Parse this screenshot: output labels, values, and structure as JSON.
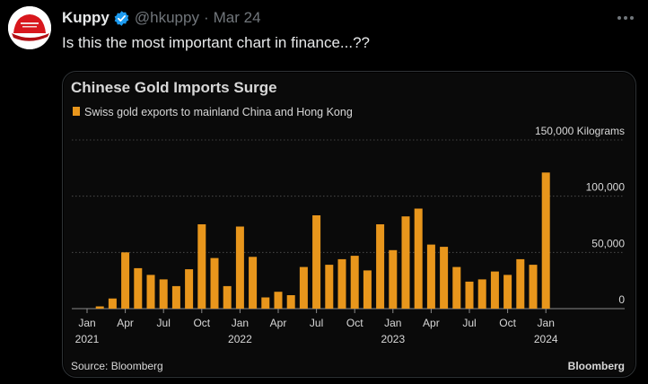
{
  "tweet": {
    "author_name": "Kuppy",
    "handle": "@hkuppy",
    "separator": "·",
    "date": "Mar 24",
    "text": "Is this the most important chart in finance...??"
  },
  "colors": {
    "bar": "#e8961c",
    "background": "#000000",
    "verified": "#1d9bf0",
    "avatar_red": "#d8171d"
  },
  "icons": {
    "verified": "verified-badge-icon",
    "more": "more-options-icon",
    "avatar": "red-cap-avatar"
  },
  "chart_data": {
    "type": "bar",
    "title": "Chinese Gold Imports Surge",
    "legend": "Swiss gold exports to mainland China and Hong Kong",
    "unit_label": "150,000 Kilograms",
    "ylim": [
      0,
      150000
    ],
    "y_ticks": [
      {
        "value": 150000,
        "label": "150,000 Kilograms"
      },
      {
        "value": 100000,
        "label": "100,000"
      },
      {
        "value": 50000,
        "label": "50,000"
      },
      {
        "value": 0,
        "label": "0"
      }
    ],
    "x_tick_labels": [
      {
        "index": 0,
        "month": "Jan",
        "year": "2021"
      },
      {
        "index": 3,
        "month": "Apr",
        "year": ""
      },
      {
        "index": 6,
        "month": "Jul",
        "year": ""
      },
      {
        "index": 9,
        "month": "Oct",
        "year": ""
      },
      {
        "index": 12,
        "month": "Jan",
        "year": "2022"
      },
      {
        "index": 15,
        "month": "Apr",
        "year": ""
      },
      {
        "index": 18,
        "month": "Jul",
        "year": ""
      },
      {
        "index": 21,
        "month": "Oct",
        "year": ""
      },
      {
        "index": 24,
        "month": "Jan",
        "year": "2023"
      },
      {
        "index": 27,
        "month": "Apr",
        "year": ""
      },
      {
        "index": 30,
        "month": "Jul",
        "year": ""
      },
      {
        "index": 33,
        "month": "Oct",
        "year": ""
      },
      {
        "index": 36,
        "month": "Jan",
        "year": "2024"
      }
    ],
    "values": [
      0,
      2000,
      9000,
      50000,
      36000,
      30000,
      26000,
      20000,
      35000,
      75000,
      45000,
      20000,
      73000,
      46000,
      10000,
      15000,
      12000,
      37000,
      83000,
      39000,
      44000,
      47000,
      34000,
      75000,
      52000,
      82000,
      89000,
      57000,
      55000,
      37000,
      24000,
      26000,
      33000,
      30000,
      44000,
      39000,
      121000
    ],
    "source": "Source: Bloomberg",
    "brand": "Bloomberg"
  }
}
